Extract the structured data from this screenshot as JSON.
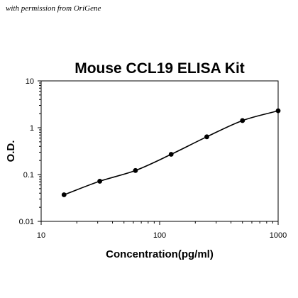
{
  "credit": "with permission from OriGene",
  "chart_data": {
    "type": "scatter",
    "title": "Mouse CCL19 ELISA Kit",
    "xlabel": "Concentration(pg/ml)",
    "ylabel": "O.D.",
    "x_scale": "log",
    "y_scale": "log",
    "xlim": [
      10,
      1000
    ],
    "ylim": [
      0.01,
      10
    ],
    "x_ticks": [
      "10",
      "100",
      "1000"
    ],
    "y_ticks": [
      "10",
      "1",
      "0.1",
      "0.01"
    ],
    "grid": false,
    "series": [
      {
        "points": [
          {
            "x": 15.6,
            "y": 0.037
          },
          {
            "x": 31.25,
            "y": 0.072
          },
          {
            "x": 62.5,
            "y": 0.122
          },
          {
            "x": 125,
            "y": 0.27
          },
          {
            "x": 250,
            "y": 0.64
          },
          {
            "x": 500,
            "y": 1.42
          },
          {
            "x": 1000,
            "y": 2.3
          }
        ],
        "fit_curve": true
      }
    ]
  }
}
